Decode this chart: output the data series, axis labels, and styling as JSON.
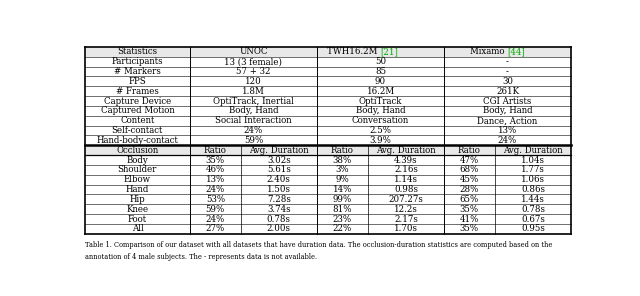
{
  "top_section": [
    [
      "Participants",
      "13 (3 female)",
      "50",
      "-"
    ],
    [
      "# Markers",
      "57 + 32",
      "85",
      "-"
    ],
    [
      "FPS",
      "120",
      "90",
      "30"
    ],
    [
      "# Frames",
      "1.8M",
      "16.2M",
      "261K"
    ],
    [
      "Capture Device",
      "OptiTrack, Inertial",
      "OptiTrack",
      "CGI Artists"
    ],
    [
      "Captured Motion",
      "Body, Hand",
      "Body, Hand",
      "Body, Hand"
    ],
    [
      "Content",
      "Social Interaction",
      "Conversation",
      "Dance, Action"
    ],
    [
      "Self-contact",
      "24%",
      "2.5%",
      "13%"
    ],
    [
      "Hand-body-contact",
      "59%",
      "3.9%",
      "24%"
    ]
  ],
  "sub_header": [
    "Occlusion",
    "Ratio",
    "Avg. Duration",
    "Ratio",
    "Avg. Duration",
    "Ratio",
    "Avg. Duration"
  ],
  "bottom_section": [
    [
      "Body",
      "35%",
      "3.02s",
      "38%",
      "4.39s",
      "47%",
      "1.04s"
    ],
    [
      "Shoulder",
      "46%",
      "5.61s",
      "3%",
      "2.16s",
      "68%",
      "1.77s"
    ],
    [
      "Elbow",
      "13%",
      "2.40s",
      "9%",
      "1.14s",
      "45%",
      "1.06s"
    ],
    [
      "Hand",
      "24%",
      "1.50s",
      "14%",
      "0.98s",
      "28%",
      "0.86s"
    ],
    [
      "Hip",
      "53%",
      "7.28s",
      "99%",
      "207.27s",
      "65%",
      "1.44s"
    ],
    [
      "Knee",
      "59%",
      "3.74s",
      "81%",
      "12.2s",
      "35%",
      "0.78s"
    ],
    [
      "Foot",
      "24%",
      "0.78s",
      "23%",
      "2.17s",
      "41%",
      "0.67s"
    ],
    [
      "All",
      "27%",
      "2.00s",
      "22%",
      "1.70s",
      "35%",
      "0.95s"
    ]
  ],
  "twh_ref_color": "#00aa00",
  "mixamo_ref_color": "#00aa00",
  "caption": "Table 1. Comparison of our dataset with all datasets that have duration data. The occlusion-duration statistics are computed based on the annotation of 4 male subjects. The - represents data is not available."
}
